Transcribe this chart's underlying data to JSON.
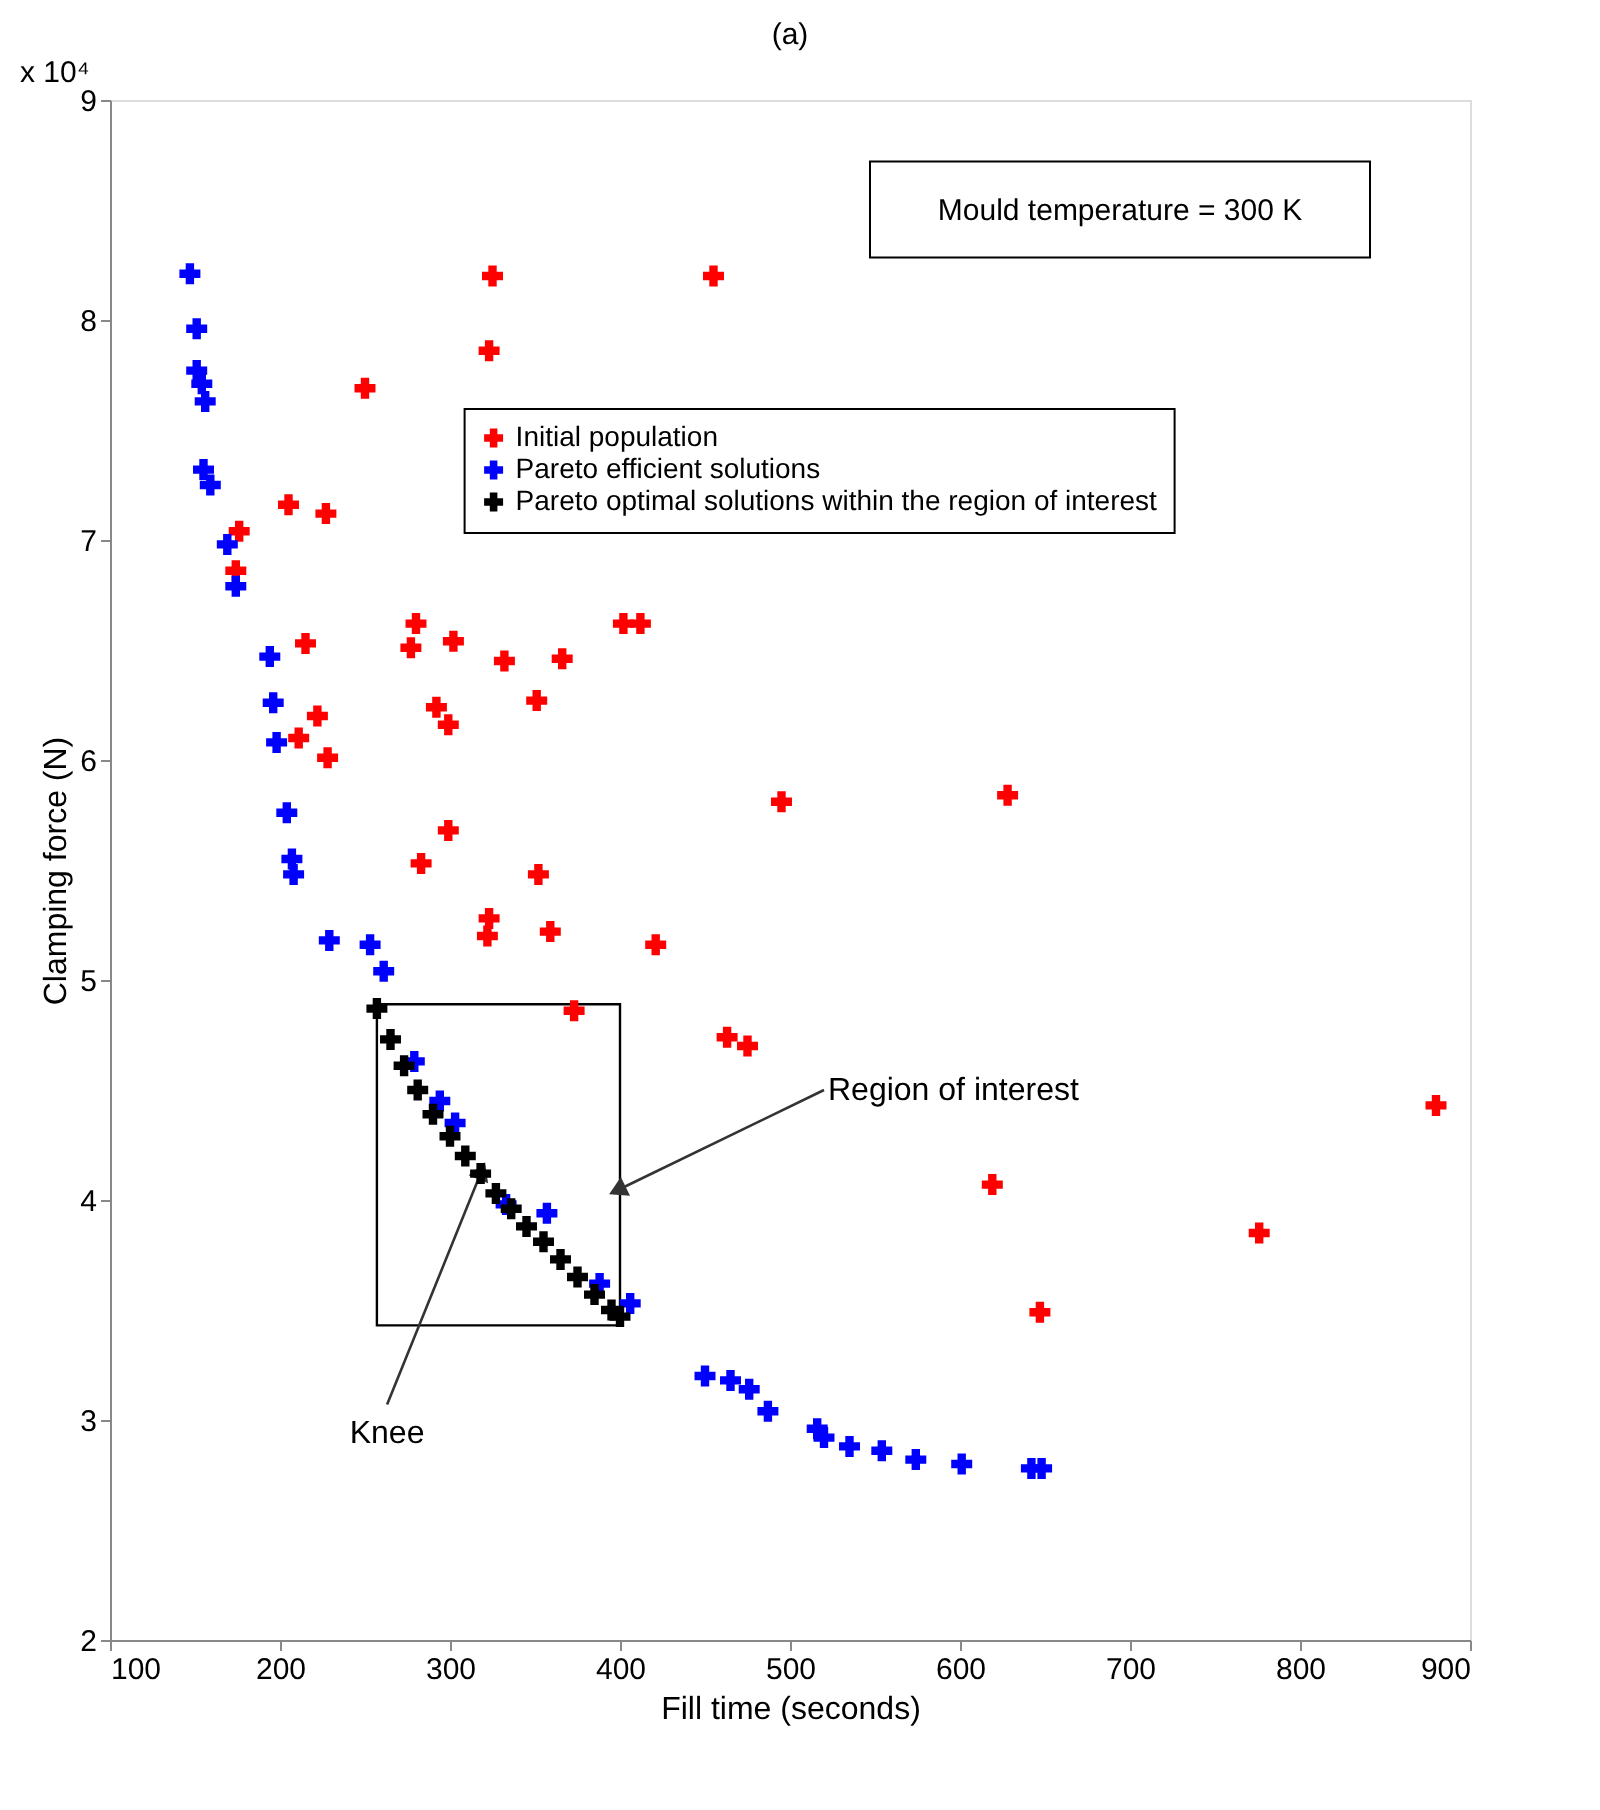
{
  "chart_data": {
    "type": "scatter",
    "title": "(a)",
    "xlabel": "Fill time (seconds)",
    "ylabel": "Clamping force (N)",
    "xlim": [
      100,
      900
    ],
    "xticks": [
      100,
      200,
      300,
      400,
      500,
      600,
      700,
      800,
      900
    ],
    "ylim": [
      2,
      9
    ],
    "yticks": [
      2,
      3,
      4,
      5,
      6,
      7,
      8,
      9
    ],
    "grid": false,
    "legend": "top right",
    "marker": "cross",
    "annotations": [
      "x 10⁴",
      "Mould temperature = 300 K",
      {
        "text": "Region of interest",
        "x": 400,
        "y": 4.05
      },
      {
        "text": "Knee",
        "x": 318,
        "y": 4.12
      }
    ],
    "series": [
      {
        "name": "Initial population",
        "color": "#ff0000",
        "x": [
          325,
          455,
          323,
          250,
          205,
          227,
          176,
          174,
          215,
          280,
          277,
          302,
          332,
          366,
          402,
          412,
          351,
          222,
          211,
          228,
          292,
          299,
          495,
          299,
          283,
          352,
          323,
          322,
          359,
          421,
          373,
          463,
          475,
          628,
          880,
          619,
          776,
          647
        ],
        "values": [
          8.2,
          8.2,
          7.86,
          7.69,
          7.16,
          7.12,
          7.04,
          6.86,
          6.53,
          6.62,
          6.51,
          6.54,
          6.45,
          6.46,
          6.62,
          6.62,
          6.27,
          6.2,
          6.1,
          6.01,
          6.24,
          6.16,
          5.81,
          5.68,
          5.53,
          5.48,
          5.28,
          5.2,
          5.22,
          5.16,
          4.86,
          4.74,
          4.7,
          5.84,
          4.43,
          4.07,
          3.85,
          3.49
        ]
      },
      {
        "name": "Pareto efficient solutions",
        "color": "#0000ff",
        "x": [
          147,
          151,
          151,
          154,
          156,
          155,
          159,
          169,
          174,
          194,
          196,
          198,
          204,
          207,
          208,
          229,
          253,
          261,
          279,
          294,
          303,
          333,
          357,
          388,
          406,
          450,
          465,
          476,
          487,
          516,
          520,
          535,
          554,
          574,
          601,
          642,
          648
        ],
        "values": [
          8.21,
          7.96,
          7.77,
          7.71,
          7.63,
          7.32,
          7.25,
          6.98,
          6.79,
          6.47,
          6.26,
          6.08,
          5.76,
          5.55,
          5.48,
          5.18,
          5.16,
          5.04,
          4.63,
          4.45,
          4.35,
          3.98,
          3.94,
          3.62,
          3.53,
          3.2,
          3.18,
          3.14,
          3.04,
          2.96,
          2.92,
          2.88,
          2.86,
          2.82,
          2.8,
          2.78,
          2.78
        ]
      },
      {
        "name": "Pareto optimal solutions within the region of interest",
        "color": "#000000",
        "x": [
          257,
          265,
          273,
          281,
          290,
          300,
          309,
          318,
          327,
          336,
          345,
          355,
          365,
          375,
          385,
          395,
          400
        ],
        "values": [
          4.87,
          4.73,
          4.61,
          4.5,
          4.39,
          4.29,
          4.2,
          4.12,
          4.03,
          3.96,
          3.88,
          3.81,
          3.73,
          3.65,
          3.57,
          3.5,
          3.47
        ]
      }
    ]
  }
}
